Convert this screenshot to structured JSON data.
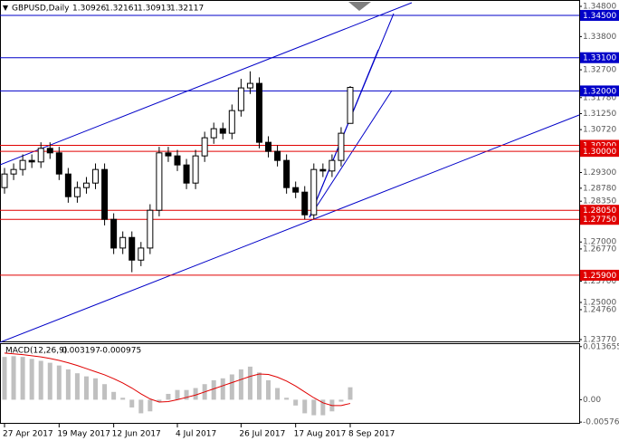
{
  "chart_data": [
    {
      "type": "candlestick",
      "title": "GBPUSD,Daily",
      "header_values": [
        1.30926,
        1.32161,
        1.30913,
        1.32117
      ],
      "categories": [
        "27 Apr 2017",
        null,
        null,
        null,
        null,
        null,
        "19 May 2017",
        null,
        null,
        null,
        null,
        null,
        "12 Jun 2017",
        null,
        null,
        null,
        null,
        null,
        null,
        "4 Jul 2017",
        null,
        null,
        null,
        null,
        null,
        null,
        "26 Jul 2017",
        null,
        null,
        null,
        null,
        null,
        "17 Aug 2017",
        null,
        null,
        null,
        null,
        null,
        "8 Sep 2017"
      ],
      "open": [
        1.288,
        1.2925,
        1.294,
        1.297,
        1.2965,
        1.301,
        1.2995,
        1.2925,
        1.285,
        1.288,
        1.2895,
        1.294,
        1.2775,
        1.268,
        1.2715,
        1.264,
        1.268,
        1.2805,
        1.2995,
        1.2985,
        1.2955,
        1.2895,
        1.2985,
        1.3045,
        1.3075,
        1.306,
        1.3135,
        1.321,
        1.3225,
        1.303,
        1.3,
        1.297,
        1.288,
        1.2865,
        1.279,
        1.294,
        1.2935,
        1.297,
        1.30926
      ],
      "high": [
        1.2945,
        1.296,
        1.299,
        1.299,
        1.303,
        1.303,
        1.3015,
        1.2945,
        1.29,
        1.2915,
        1.296,
        1.296,
        1.2795,
        1.2735,
        1.2735,
        1.27,
        1.2825,
        1.3015,
        1.3015,
        1.3005,
        1.2975,
        1.3005,
        1.3065,
        1.3095,
        1.3095,
        1.3155,
        1.324,
        1.3265,
        1.3245,
        1.305,
        1.302,
        1.299,
        1.29,
        1.2885,
        1.296,
        1.296,
        1.299,
        1.308,
        1.32161
      ],
      "low": [
        1.286,
        1.2905,
        1.292,
        1.2945,
        1.2945,
        1.2975,
        1.2905,
        1.283,
        1.283,
        1.286,
        1.2875,
        1.2755,
        1.266,
        1.266,
        1.26,
        1.262,
        1.266,
        1.2785,
        1.2965,
        1.2935,
        1.2875,
        1.2875,
        1.2965,
        1.3025,
        1.304,
        1.304,
        1.3115,
        1.319,
        1.301,
        1.298,
        1.295,
        1.286,
        1.2845,
        1.2775,
        1.2775,
        1.2915,
        1.2915,
        1.295,
        1.30913
      ],
      "close": [
        1.2925,
        1.294,
        1.297,
        1.2965,
        1.301,
        1.2995,
        1.2925,
        1.285,
        1.288,
        1.2895,
        1.294,
        1.2775,
        1.268,
        1.2715,
        1.264,
        1.268,
        1.2805,
        1.2995,
        1.2985,
        1.2955,
        1.2895,
        1.2985,
        1.3045,
        1.3075,
        1.306,
        1.3135,
        1.321,
        1.3225,
        1.303,
        1.3,
        1.297,
        1.288,
        1.2865,
        1.279,
        1.294,
        1.2935,
        1.297,
        1.306,
        1.32117
      ],
      "ylim": [
        1.2368,
        1.3501
      ],
      "yticks": [
        {
          "value": 1.348,
          "label": "1.34800"
        },
        {
          "value": 1.338,
          "label": "1.33800"
        },
        {
          "value": 1.327,
          "label": "1.32700"
        },
        {
          "value": 1.3178,
          "label": "1.31780"
        },
        {
          "value": 1.3125,
          "label": "1.31250"
        },
        {
          "value": 1.3072,
          "label": "1.30720"
        },
        {
          "value": 1.293,
          "label": "1.29300"
        },
        {
          "value": 1.2878,
          "label": "1.28780"
        },
        {
          "value": 1.2835,
          "label": "1.28350"
        },
        {
          "value": 1.27,
          "label": "1.27000"
        },
        {
          "value": 1.2677,
          "label": "1.26770"
        },
        {
          "value": 1.257,
          "label": "1.25700"
        },
        {
          "value": 1.25,
          "label": "1.25000"
        },
        {
          "value": 1.2476,
          "label": "1.24760"
        },
        {
          "value": 1.2377,
          "label": "1.23770"
        }
      ],
      "levels": [
        {
          "value": 1.345,
          "label": "1.34500",
          "color": "#0000c8"
        },
        {
          "value": 1.331,
          "label": "1.33100",
          "color": "#0000c8"
        },
        {
          "value": 1.32,
          "label": "1.32000",
          "color": "#0000c8"
        },
        {
          "value": 1.302,
          "label": "1.30200",
          "color": "#e00000"
        },
        {
          "value": 1.3,
          "label": "1.30000",
          "color": "#e00000"
        },
        {
          "value": 1.2805,
          "label": "1.28050",
          "color": "#e00000"
        },
        {
          "value": 1.2775,
          "label": "1.27750",
          "color": "#e00000"
        },
        {
          "value": 1.259,
          "label": "1.25900",
          "color": "#e00000"
        }
      ],
      "color": "#000000"
    },
    {
      "type": "macd",
      "title": "MACD(12,26,9)",
      "header_values": [
        0.003197,
        -0.000975
      ],
      "histogram": [
        0.011,
        0.0112,
        0.011,
        0.0105,
        0.01,
        0.0095,
        0.0088,
        0.0078,
        0.0068,
        0.006,
        0.0055,
        0.004,
        0.002,
        0.0005,
        -0.002,
        -0.0035,
        -0.003,
        -0.0005,
        0.0015,
        0.0025,
        0.0025,
        0.003,
        0.004,
        0.005,
        0.0055,
        0.0065,
        0.0078,
        0.0085,
        0.007,
        0.005,
        0.003,
        0.0005,
        -0.0015,
        -0.0035,
        -0.004,
        -0.004,
        -0.003,
        -0.0005,
        0.003197
      ],
      "signal": [
        0.012,
        0.0118,
        0.0116,
        0.0113,
        0.011,
        0.0106,
        0.0101,
        0.0095,
        0.0088,
        0.008,
        0.0072,
        0.0064,
        0.0054,
        0.0043,
        0.003,
        0.0015,
        0.0002,
        -0.0006,
        -0.0005,
        0.0,
        0.0006,
        0.0012,
        0.002,
        0.0028,
        0.0036,
        0.0044,
        0.0052,
        0.006,
        0.0066,
        0.0065,
        0.0058,
        0.0048,
        0.0035,
        0.002,
        0.0005,
        -0.0008,
        -0.0015,
        -0.0015,
        -0.000975
      ],
      "histogram_color": "#c0c0c0",
      "signal_color": "#e00000",
      "ylim": [
        -0.0062,
        0.0143
      ],
      "yticks": [
        0.013655,
        {
          "value": 0,
          "label": "0.00"
        },
        -0.00576
      ]
    }
  ]
}
